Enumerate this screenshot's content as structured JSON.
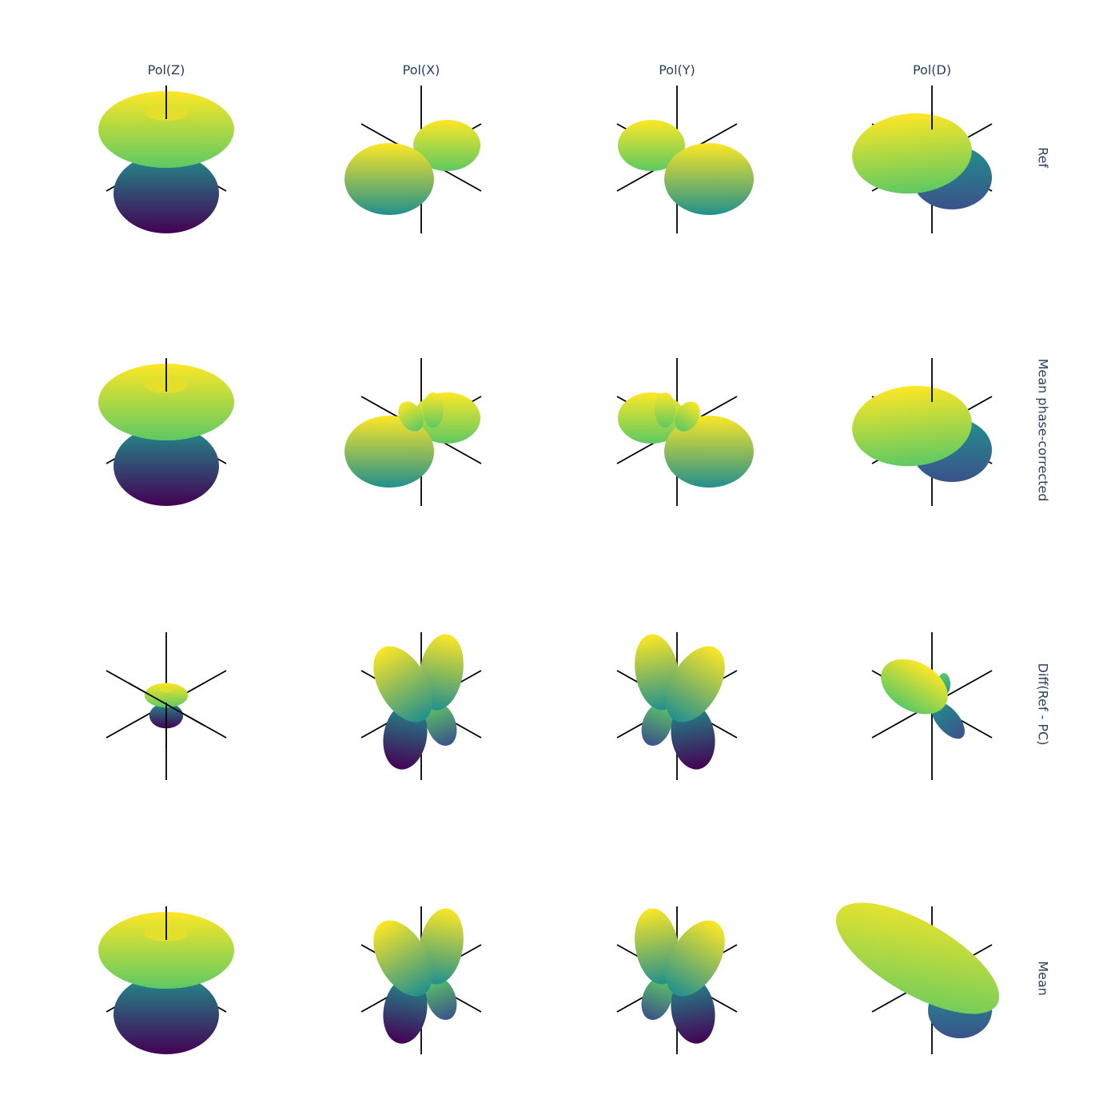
{
  "chart_data": {
    "type": "3d-surface-grid",
    "title": "",
    "columns": [
      "Pol(Z)",
      "Pol(X)",
      "Pol(Y)",
      "Pol(D)"
    ],
    "rows": [
      "Ref",
      "Mean phase-corrected",
      "Diff(Ref - PC)",
      "Mean"
    ],
    "colorscale": "viridis",
    "colorscale_stops": [
      "#440154",
      "#3b528b",
      "#21908d",
      "#5dc963",
      "#fde725"
    ],
    "axes_visible": true,
    "grid": false,
    "legend": "none"
  }
}
